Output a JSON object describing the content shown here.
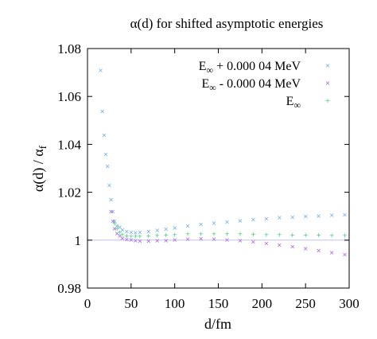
{
  "chart_data": {
    "type": "scatter",
    "title": "α(d) for shifted asymptotic energies",
    "xlabel": "d/fm",
    "ylabel": "α(d) / α",
    "ylabel_sub": "f",
    "xlim": [
      0,
      300
    ],
    "ylim": [
      0.98,
      1.08
    ],
    "xticks": [
      "0",
      "50",
      "100",
      "150",
      "200",
      "250",
      "300"
    ],
    "yticks": [
      "0.98",
      "1",
      "1.02",
      "1.04",
      "1.06",
      "1.08"
    ],
    "reference_line_y": 1,
    "grid": false,
    "legend_position": "top-right",
    "series": [
      {
        "name": "E∞ + 0.000 04 MeV",
        "name_parts": [
          "E",
          "∞",
          " + 0.000 04 MeV"
        ],
        "color": "#6aa8e0",
        "marker": "×",
        "points": [
          [
            15,
            1.071
          ],
          [
            17,
            1.054
          ],
          [
            19,
            1.044
          ],
          [
            21,
            1.036
          ],
          [
            23,
            1.031
          ],
          [
            25,
            1.023
          ],
          [
            27,
            1.017
          ],
          [
            29,
            1.012
          ],
          [
            31,
            1.008
          ],
          [
            34,
            1.006
          ],
          [
            37,
            1.0055
          ],
          [
            40,
            1.0045
          ],
          [
            45,
            1.0038
          ],
          [
            50,
            1.0035
          ],
          [
            55,
            1.0033
          ],
          [
            60,
            1.0034
          ],
          [
            70,
            1.0038
          ],
          [
            80,
            1.0043
          ],
          [
            90,
            1.0048
          ],
          [
            100,
            1.0053
          ],
          [
            115,
            1.006
          ],
          [
            130,
            1.0068
          ],
          [
            145,
            1.0073
          ],
          [
            160,
            1.0078
          ],
          [
            175,
            1.0083
          ],
          [
            190,
            1.0088
          ],
          [
            205,
            1.0091
          ],
          [
            220,
            1.0095
          ],
          [
            235,
            1.0098
          ],
          [
            250,
            1.0101
          ],
          [
            265,
            1.0103
          ],
          [
            280,
            1.0106
          ],
          [
            295,
            1.0108
          ]
        ]
      },
      {
        "name": "E∞ - 0.000 04 MeV",
        "name_parts": [
          "E",
          "∞",
          " - 0.000 04 MeV"
        ],
        "color": "#a05ee0",
        "marker": "×",
        "points": [
          [
            27,
            1.012
          ],
          [
            29,
            1.008
          ],
          [
            31,
            1.005
          ],
          [
            34,
            1.003
          ],
          [
            37,
            1.002
          ],
          [
            40,
            1.001
          ],
          [
            45,
            1.0005
          ],
          [
            50,
            1.0002
          ],
          [
            55,
            1.0
          ],
          [
            60,
            0.9998
          ],
          [
            70,
            0.9998
          ],
          [
            80,
            0.9999
          ],
          [
            90,
            1.0
          ],
          [
            100,
            1.0003
          ],
          [
            115,
            1.0006
          ],
          [
            130,
            1.0007
          ],
          [
            145,
            1.0006
          ],
          [
            160,
            1.0003
          ],
          [
            175,
            0.9999
          ],
          [
            190,
            0.9994
          ],
          [
            205,
            0.9988
          ],
          [
            220,
            0.9981
          ],
          [
            235,
            0.9974
          ],
          [
            250,
            0.9966
          ],
          [
            265,
            0.9958
          ],
          [
            280,
            0.9949
          ],
          [
            295,
            0.9942
          ]
        ]
      },
      {
        "name": "E∞",
        "name_parts": [
          "E",
          "∞",
          ""
        ],
        "color": "#3fc870",
        "marker": "+",
        "points": [
          [
            31,
            1.007
          ],
          [
            34,
            1.005
          ],
          [
            37,
            1.0035
          ],
          [
            40,
            1.0025
          ],
          [
            45,
            1.002
          ],
          [
            50,
            1.0018
          ],
          [
            55,
            1.0017
          ],
          [
            60,
            1.0017
          ],
          [
            70,
            1.0019
          ],
          [
            80,
            1.0021
          ],
          [
            90,
            1.0023
          ],
          [
            100,
            1.0025
          ],
          [
            115,
            1.0027
          ],
          [
            130,
            1.0028
          ],
          [
            145,
            1.0028
          ],
          [
            160,
            1.0028
          ],
          [
            175,
            1.0027
          ],
          [
            190,
            1.0026
          ],
          [
            205,
            1.0025
          ],
          [
            220,
            1.0024
          ],
          [
            235,
            1.0023
          ],
          [
            250,
            1.0022
          ],
          [
            265,
            1.0022
          ],
          [
            280,
            1.0021
          ],
          [
            295,
            1.0021
          ]
        ]
      }
    ]
  }
}
